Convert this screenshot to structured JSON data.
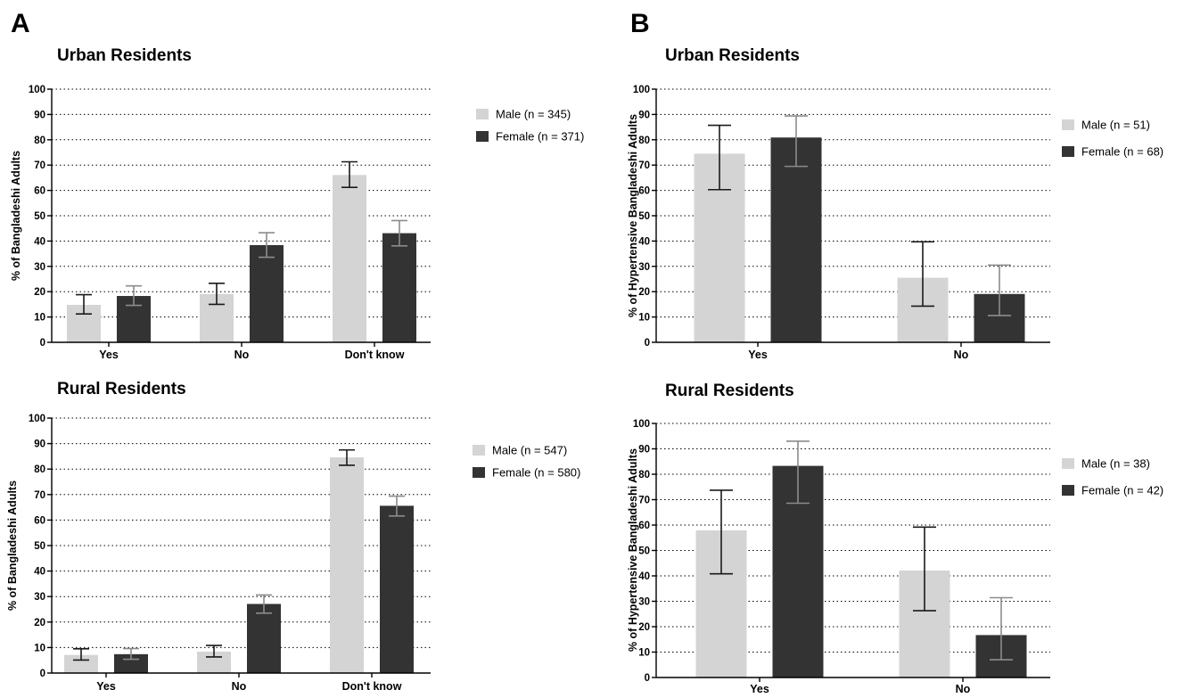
{
  "panels": [
    {
      "letter": "A"
    },
    {
      "letter": "B"
    }
  ],
  "colors": {
    "male": "#d4d4d4",
    "female": "#333333"
  },
  "chart_data": [
    {
      "type": "bar",
      "panel": "A",
      "title": "Urban Residents",
      "ylabel": "% of Bangladeshi Adults",
      "xlabel": "",
      "ylim": [
        0,
        100
      ],
      "yticks": [
        0,
        10,
        20,
        30,
        40,
        50,
        60,
        70,
        80,
        90,
        100
      ],
      "categories": [
        "Yes",
        "No",
        "Don't know"
      ],
      "grid": true,
      "legend_position": "right",
      "series": [
        {
          "name": "Male (n = 345)",
          "color": "#d4d4d4",
          "values": [
            14.8,
            19.1,
            66.1
          ],
          "error_low": [
            11.2,
            15.0,
            61.2
          ],
          "error_high": [
            18.8,
            23.3,
            71.3
          ]
        },
        {
          "name": "Female (n = 371)",
          "color": "#333333",
          "values": [
            18.3,
            38.4,
            43.1
          ],
          "error_low": [
            14.6,
            33.6,
            38.1
          ],
          "error_high": [
            22.3,
            43.3,
            48.1
          ]
        }
      ]
    },
    {
      "type": "bar",
      "panel": "A",
      "title": "Rural Residents",
      "ylabel": "% of Bangladeshi Adults",
      "xlabel": "",
      "ylim": [
        0,
        100
      ],
      "yticks": [
        0,
        10,
        20,
        30,
        40,
        50,
        60,
        70,
        80,
        90,
        100
      ],
      "categories": [
        "Yes",
        "No",
        "Don't know"
      ],
      "grid": true,
      "legend_position": "right",
      "series": [
        {
          "name": "Male (n = 547)",
          "color": "#d4d4d4",
          "values": [
            7.1,
            8.4,
            84.6
          ],
          "error_low": [
            5.1,
            6.3,
            81.5
          ],
          "error_high": [
            9.5,
            10.8,
            87.5
          ]
        },
        {
          "name": "Female (n = 580)",
          "color": "#333333",
          "values": [
            7.4,
            27.1,
            65.6
          ],
          "error_low": [
            5.4,
            23.5,
            61.6
          ],
          "error_high": [
            9.6,
            30.6,
            69.4
          ]
        }
      ]
    },
    {
      "type": "bar",
      "panel": "B",
      "title": "Urban Residents",
      "ylabel": "% of Hypertensive Bangladeshi Adults",
      "xlabel": "",
      "ylim": [
        0,
        100
      ],
      "yticks": [
        0,
        10,
        20,
        30,
        40,
        50,
        60,
        70,
        80,
        90,
        100
      ],
      "categories": [
        "Yes",
        "No"
      ],
      "grid": true,
      "legend_position": "right",
      "series": [
        {
          "name": "Male (n = 51)",
          "color": "#d4d4d4",
          "values": [
            74.5,
            25.5
          ],
          "error_low": [
            60.3,
            14.3
          ],
          "error_high": [
            85.7,
            39.7
          ]
        },
        {
          "name": "Female (n = 68)",
          "color": "#333333",
          "values": [
            80.9,
            19.1
          ],
          "error_low": [
            69.5,
            10.6
          ],
          "error_high": [
            89.4,
            30.5
          ]
        }
      ]
    },
    {
      "type": "bar",
      "panel": "B",
      "title": "Rural Residents",
      "ylabel": "% of Hypertensive Bangladeshi Adults",
      "xlabel": "",
      "ylim": [
        0,
        100
      ],
      "yticks": [
        0,
        10,
        20,
        30,
        40,
        50,
        60,
        70,
        80,
        90,
        100
      ],
      "categories": [
        "Yes",
        "No"
      ],
      "grid": true,
      "legend_position": "right",
      "series": [
        {
          "name": "Male (n = 38)",
          "color": "#d4d4d4",
          "values": [
            57.9,
            42.1
          ],
          "error_low": [
            40.8,
            26.3
          ],
          "error_high": [
            73.7,
            59.2
          ]
        },
        {
          "name": "Female (n = 42)",
          "color": "#333333",
          "values": [
            83.3,
            16.7
          ],
          "error_low": [
            68.6,
            7.0
          ],
          "error_high": [
            93.0,
            31.4
          ]
        }
      ]
    }
  ]
}
